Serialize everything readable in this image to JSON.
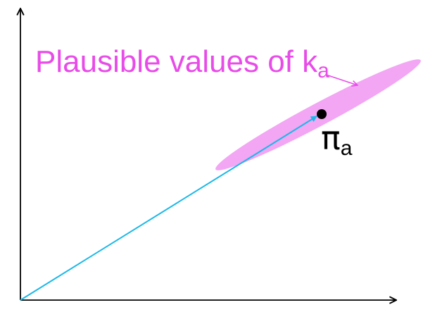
{
  "diagram": {
    "region_label": {
      "text": "Plausible values of k",
      "subscript": "a"
    },
    "point_label": {
      "text": "π",
      "subscript": "a"
    },
    "colors": {
      "axes": "#000000",
      "vector": "#1ab8e8",
      "region_fill": "#f2a6f4",
      "label": "#e84ce8",
      "point": "#000000"
    }
  }
}
